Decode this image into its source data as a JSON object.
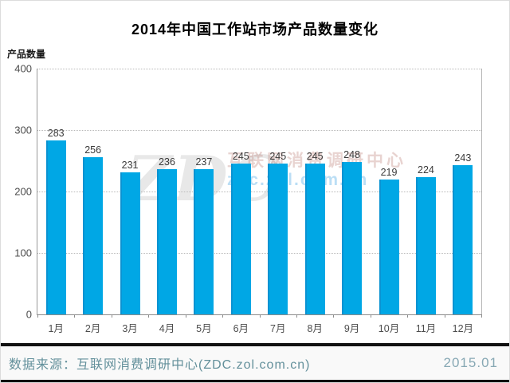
{
  "chart_data": {
    "type": "bar",
    "title": "2014年中国工作站市场产品数量变化",
    "ylabel": "产品数量",
    "xlabel": "",
    "categories": [
      "1月",
      "2月",
      "3月",
      "4月",
      "5月",
      "6月",
      "7月",
      "8月",
      "9月",
      "10月",
      "11月",
      "12月"
    ],
    "values": [
      283,
      256,
      231,
      236,
      237,
      245,
      245,
      245,
      248,
      219,
      224,
      243
    ],
    "ylim": [
      0,
      400
    ],
    "yticks": [
      0,
      100,
      200,
      300,
      400
    ],
    "grid": "horizontal-dotted",
    "legend": "none",
    "bar_color": "#00a7e5",
    "label_color": "#3a3a3a"
  },
  "watermark": {
    "big": "ZDC",
    "line1": "互联网消费调研中心",
    "line2": "zdc.zol.com.cn"
  },
  "footer": {
    "source": "数据来源：互联网消费调研中心(ZDC.zol.com.cn)",
    "date": "2015.01",
    "text_color": "#63909b"
  }
}
